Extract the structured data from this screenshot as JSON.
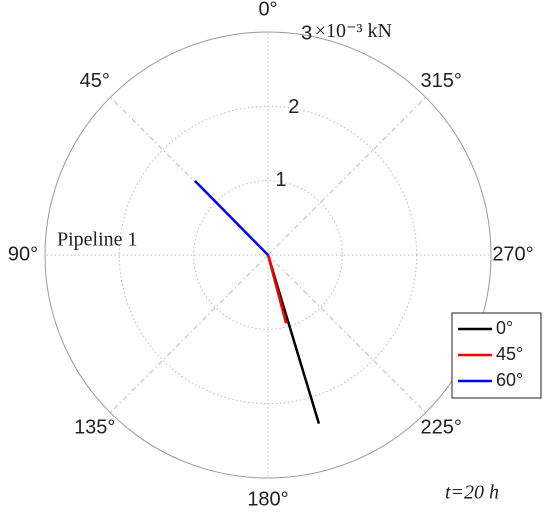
{
  "chart_data": {
    "type": "polar",
    "r_unit": "×10⁻³ kN",
    "rlim": [
      0,
      3
    ],
    "rticks": [
      1,
      2,
      3
    ],
    "thetaticks": [
      {
        "value": 0,
        "label": "0°"
      },
      {
        "value": 45,
        "label": "45°"
      },
      {
        "value": 90,
        "label": "90°"
      },
      {
        "value": 135,
        "label": "135°"
      },
      {
        "value": 180,
        "label": "180°"
      },
      {
        "value": 225,
        "label": "225°"
      },
      {
        "value": 270,
        "label": "270°"
      },
      {
        "value": 315,
        "label": "315°"
      }
    ],
    "annotations": [
      "Pipeline 1",
      "t=20 h"
    ],
    "grid": true,
    "legend": "lower right",
    "series": [
      {
        "name": "0°",
        "color": "#000000",
        "theta": 196.8,
        "r": 2.37
      },
      {
        "name": "45°",
        "color": "#ff0000",
        "theta": 194.8,
        "r": 0.95
      },
      {
        "name": "60°",
        "color": "#0000ff",
        "theta": 44.6,
        "r": 1.4
      }
    ]
  }
}
